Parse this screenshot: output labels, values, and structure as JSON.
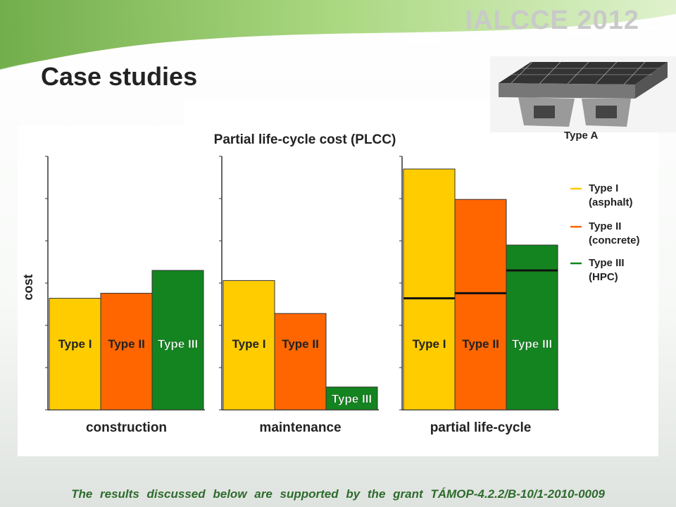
{
  "header": {
    "conference": "IALCCE  2012",
    "title": "Case studies"
  },
  "figure": {
    "caption": "Type A"
  },
  "colors": {
    "type_i": "#ffcc00",
    "type_ii": "#ff6600",
    "type_iii": "#13841f",
    "accent_green": "#2e6b2e"
  },
  "chart_data": {
    "type": "bar",
    "title": "Partial life-cycle cost (PLCC)",
    "ylabel": "cost",
    "ylim": [
      0,
      100
    ],
    "groups": [
      "construction",
      "maintenance",
      "partial life-cycle"
    ],
    "series": [
      {
        "name": "Type I (asphalt)",
        "short": "Type I",
        "values": [
          44,
          51,
          95
        ]
      },
      {
        "name": "Type II (concrete)",
        "short": "Type II",
        "values": [
          46,
          38,
          83
        ]
      },
      {
        "name": "Type III (HPC)",
        "short": "Type III",
        "values": [
          55,
          9,
          65
        ]
      }
    ],
    "construction_share": [
      44,
      46,
      55
    ],
    "legend": [
      {
        "line1": "Type I",
        "line2": "(asphalt)"
      },
      {
        "line1": "Type II",
        "line2": "(concrete)"
      },
      {
        "line1": "Type III",
        "line2": "(HPC)"
      }
    ],
    "legend_position": "right",
    "grid": false
  },
  "footer": "The results discussed below are supported by the grant TÁMOP-4.2.2/B-10/1-2010-0009"
}
